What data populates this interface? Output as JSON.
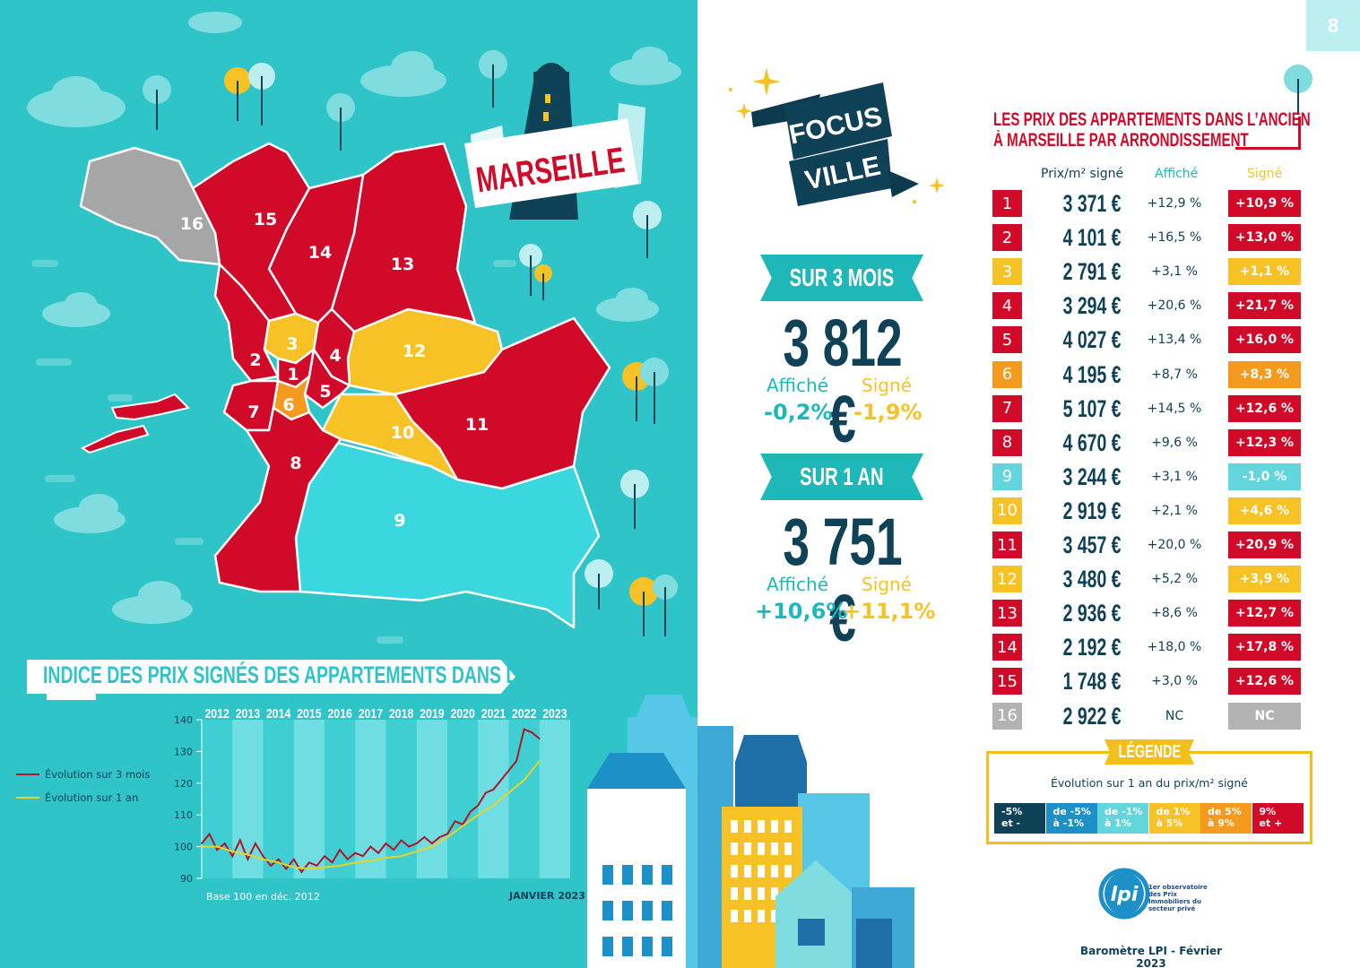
{
  "page_number": "8",
  "city_label": "MARSEILLE",
  "focus": {
    "line1": "FOCUS",
    "line2": "VILLE"
  },
  "periods": [
    {
      "label": "SUR 3 MOIS",
      "price": "3 812 €",
      "affiche_label": "Affiché",
      "signe_label": "Signé",
      "affiche_value": "-0,2%",
      "signe_value": "-1,9%"
    },
    {
      "label": "SUR 1 AN",
      "price": "3 751 €",
      "affiche_label": "Affiché",
      "signe_label": "Signé",
      "affiche_value": "+10,6%",
      "signe_value": "+11,1%"
    }
  ],
  "table": {
    "title_line1": "LES PRIX DES APPARTEMENTS DANS L’ANCIEN",
    "title_line2": "À MARSEILLE PAR ARRONDISSEMENT",
    "col_price": "Prix/m² signé",
    "col_affiche": "Affiché",
    "col_signe": "Signé",
    "rows": [
      {
        "num": "1",
        "price": "3 371 €",
        "affiche": "+12,9 %",
        "signe": "+10,9 %",
        "color": "#d10a2a"
      },
      {
        "num": "2",
        "price": "4 101 €",
        "affiche": "+16,5 %",
        "signe": "+13,0 %",
        "color": "#d10a2a"
      },
      {
        "num": "3",
        "price": "2 791 €",
        "affiche": "+3,1 %",
        "signe": "+1,1 %",
        "color": "#f6c225"
      },
      {
        "num": "4",
        "price": "3 294 €",
        "affiche": "+20,6 %",
        "signe": "+21,7 %",
        "color": "#d10a2a"
      },
      {
        "num": "5",
        "price": "4 027 €",
        "affiche": "+13,4 %",
        "signe": "+16,0 %",
        "color": "#d10a2a"
      },
      {
        "num": "6",
        "price": "4 195 €",
        "affiche": "+8,7 %",
        "signe": "+8,3 %",
        "color": "#f49a1e"
      },
      {
        "num": "7",
        "price": "5 107 €",
        "affiche": "+14,5 %",
        "signe": "+12,6 %",
        "color": "#d10a2a"
      },
      {
        "num": "8",
        "price": "4 670 €",
        "affiche": "+9,6 %",
        "signe": "+12,3 %",
        "color": "#d10a2a"
      },
      {
        "num": "9",
        "price": "3 244 €",
        "affiche": "+3,1 %",
        "signe": "-1,0 %",
        "color": "#62d6dc"
      },
      {
        "num": "10",
        "price": "2 919 €",
        "affiche": "+2,1 %",
        "signe": "+4,6 %",
        "color": "#f6c225"
      },
      {
        "num": "11",
        "price": "3 457 €",
        "affiche": "+20,0 %",
        "signe": "+20,9 %",
        "color": "#d10a2a"
      },
      {
        "num": "12",
        "price": "3 480 €",
        "affiche": "+5,2 %",
        "signe": "+3,9 %",
        "color": "#f6c225"
      },
      {
        "num": "13",
        "price": "2 936 €",
        "affiche": "+8,6 %",
        "signe": "+12,7 %",
        "color": "#d10a2a"
      },
      {
        "num": "14",
        "price": "2 192 €",
        "affiche": "+18,0 %",
        "signe": "+17,8 %",
        "color": "#d10a2a"
      },
      {
        "num": "15",
        "price": "1 748 €",
        "affiche": "+3,0 %",
        "signe": "+12,6 %",
        "color": "#d10a2a"
      },
      {
        "num": "16",
        "price": "2 922 €",
        "affiche": "NC",
        "signe": "NC",
        "color": "#b3b3b3"
      }
    ]
  },
  "legend": {
    "title": "LÉGENDE",
    "caption": "Évolution sur 1 an du prix/m² signé",
    "items": [
      {
        "line1": "-5%",
        "line2": "et -",
        "color": "#0f4157"
      },
      {
        "line1": "de -5%",
        "line2": "à -1%",
        "color": "#1e90c8"
      },
      {
        "line1": "de -1%",
        "line2": "à 1%",
        "color": "#62d6dc"
      },
      {
        "line1": "de 1%",
        "line2": "à 5%",
        "color": "#f6c225"
      },
      {
        "line1": "de 5%",
        "line2": "à 9%",
        "color": "#f49a1e"
      },
      {
        "line1": "9%",
        "line2": "et +",
        "color": "#d10a2a"
      }
    ]
  },
  "logo": {
    "mark": "lpi",
    "text": "1er observatoire des Prix Immobiliers du secteur privé"
  },
  "footer": "Baromètre LPI - Février 2023",
  "map": {
    "arrondissements": [
      {
        "num": "1",
        "color": "#d10a2a"
      },
      {
        "num": "2",
        "color": "#d10a2a"
      },
      {
        "num": "3",
        "color": "#f6c225"
      },
      {
        "num": "4",
        "color": "#d10a2a"
      },
      {
        "num": "5",
        "color": "#d10a2a"
      },
      {
        "num": "6",
        "color": "#f49a1e"
      },
      {
        "num": "7",
        "color": "#d10a2a"
      },
      {
        "num": "8",
        "color": "#d10a2a"
      },
      {
        "num": "9",
        "color": "#3ad8de"
      },
      {
        "num": "10",
        "color": "#f6c225"
      },
      {
        "num": "11",
        "color": "#d10a2a"
      },
      {
        "num": "12",
        "color": "#f6c225"
      },
      {
        "num": "13",
        "color": "#d10a2a"
      },
      {
        "num": "14",
        "color": "#d10a2a"
      },
      {
        "num": "15",
        "color": "#d10a2a"
      },
      {
        "num": "16",
        "color": "#a6a6a6"
      }
    ]
  },
  "chart_data": {
    "type": "line",
    "title": "INDICE DES PRIX SIGNÉS DES APPARTEMENTS DANS L’ANCIEN",
    "top_labels": [
      "2012",
      "2013",
      "2014",
      "2015",
      "2016",
      "2017",
      "2018",
      "2019",
      "2020",
      "2021",
      "2022",
      "2023"
    ],
    "ylim": [
      90,
      140
    ],
    "yticks": [
      90,
      100,
      110,
      120,
      130,
      140
    ],
    "grid": "alternating vertical bands per year",
    "legend_placement": "left",
    "note_left": "Base 100 en déc. 2012",
    "note_right": "JANVIER 2023",
    "series": [
      {
        "name": "Évolution sur 3 mois",
        "color": "#b0152a",
        "x": [
          2012.0,
          2012.25,
          2012.5,
          2012.75,
          2013.0,
          2013.25,
          2013.5,
          2013.75,
          2014.0,
          2014.25,
          2014.5,
          2014.75,
          2015.0,
          2015.25,
          2015.5,
          2015.75,
          2016.0,
          2016.25,
          2016.5,
          2016.75,
          2017.0,
          2017.25,
          2017.5,
          2017.75,
          2018.0,
          2018.25,
          2018.5,
          2018.75,
          2019.0,
          2019.25,
          2019.5,
          2019.75,
          2020.0,
          2020.25,
          2020.5,
          2020.75,
          2021.0,
          2021.25,
          2021.5,
          2021.75,
          2022.0,
          2022.25,
          2022.5,
          2022.75,
          2023.0
        ],
        "values": [
          101,
          104,
          99,
          101,
          97,
          102,
          96,
          101,
          97,
          94,
          96,
          93,
          96,
          92,
          95,
          94,
          97,
          95,
          99,
          96,
          98,
          97,
          100,
          98,
          101,
          99,
          102,
          100,
          101,
          103,
          101,
          103,
          104,
          108,
          107,
          111,
          113,
          117,
          118,
          121,
          124,
          127,
          137,
          136,
          134
        ]
      },
      {
        "name": "Évolution sur 1 an",
        "color": "#e8d22a",
        "x": [
          2012.0,
          2012.5,
          2013.0,
          2013.5,
          2014.0,
          2014.5,
          2015.0,
          2015.5,
          2016.0,
          2016.5,
          2017.0,
          2017.5,
          2018.0,
          2018.5,
          2019.0,
          2019.5,
          2020.0,
          2020.5,
          2021.0,
          2021.5,
          2022.0,
          2022.5,
          2023.0
        ],
        "values": [
          100,
          100,
          98.5,
          97.5,
          96,
          95,
          93.5,
          93,
          93.5,
          94,
          95,
          95.5,
          96.5,
          97,
          98.5,
          100,
          103,
          106.5,
          110,
          113,
          117,
          121,
          127
        ]
      }
    ]
  }
}
